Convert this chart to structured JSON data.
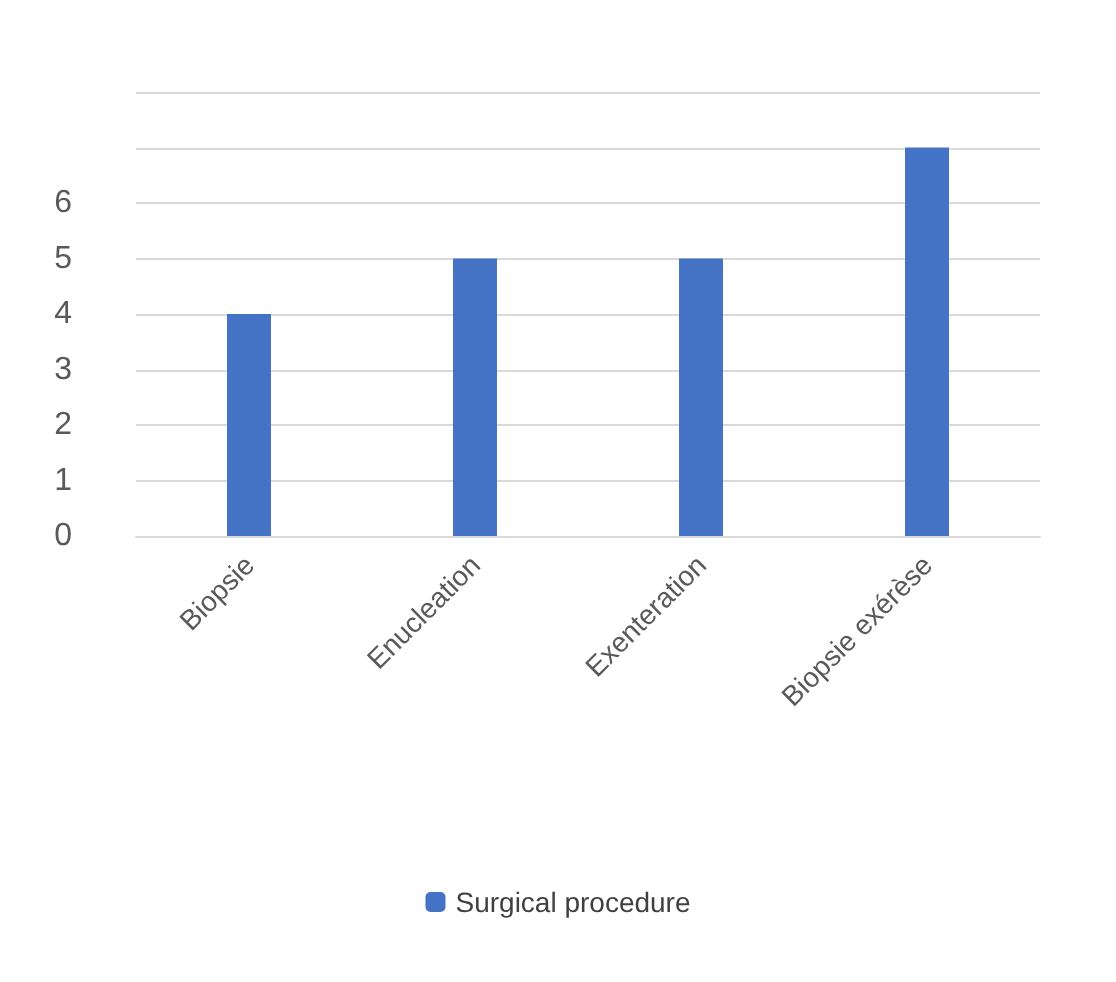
{
  "chart_data": {
    "type": "bar",
    "categories": [
      "Biopsie",
      "Enucleation",
      "Exenteration",
      "Biopsie exérèse"
    ],
    "series": [
      {
        "name": "Surgical procedure",
        "color": "#4472c4",
        "values": [
          4,
          5,
          5,
          7
        ]
      }
    ],
    "ylim": [
      0,
      8
    ],
    "yticks": [
      0,
      1,
      2,
      3,
      4,
      5,
      6,
      {
        "value": 7,
        "label": null
      },
      {
        "value": 8,
        "label": null
      }
    ],
    "grid": "y",
    "legend": "bottom"
  }
}
